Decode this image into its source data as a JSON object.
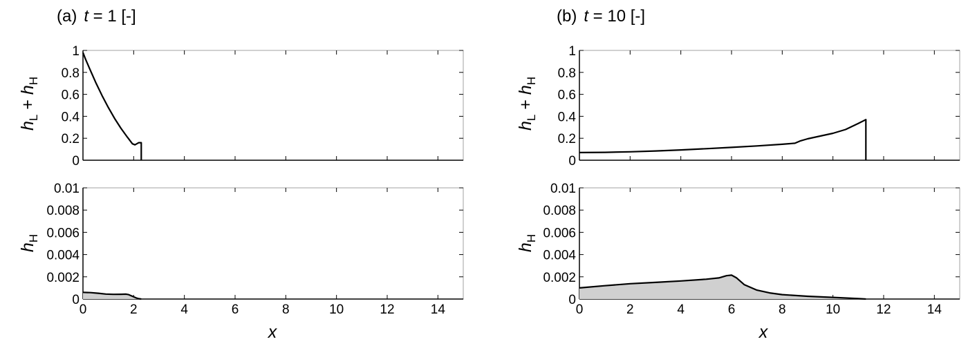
{
  "chart_data": [
    {
      "type": "line",
      "panel": "a",
      "title": "(a)  t = 1 [-]",
      "title_parts": {
        "prefix": "(a)",
        "var": "t",
        "rest": " = 1 [-]"
      },
      "ylabel": {
        "main1": "h",
        "sub1": "L",
        "plus": " + ",
        "main2": "h",
        "sub2": "H"
      },
      "xlabel": "",
      "xlim": [
        0,
        15
      ],
      "ylim": [
        0,
        1
      ],
      "yticks": [
        "0",
        "0.2",
        "0.4",
        "0.6",
        "0.8",
        "1"
      ],
      "x": [
        0,
        0.1,
        0.25,
        0.5,
        0.75,
        1.0,
        1.25,
        1.5,
        1.75,
        1.95,
        2.05,
        2.2,
        2.3,
        2.3
      ],
      "y": [
        0.98,
        0.92,
        0.84,
        0.71,
        0.59,
        0.48,
        0.38,
        0.29,
        0.21,
        0.15,
        0.14,
        0.16,
        0.16,
        0
      ]
    },
    {
      "type": "area",
      "panel": "a",
      "ylabel": {
        "main": "h",
        "sub": "H"
      },
      "xlabel": "x",
      "xlim": [
        0,
        15
      ],
      "ylim": [
        0,
        0.01
      ],
      "xticks": [
        "0",
        "2",
        "4",
        "6",
        "8",
        "10",
        "12",
        "14"
      ],
      "yticks": [
        "0",
        "0.002",
        "0.004",
        "0.006",
        "0.008",
        "0.01"
      ],
      "x": [
        0,
        0.3,
        0.6,
        0.9,
        1.2,
        1.5,
        1.7,
        1.8,
        1.95,
        2.1,
        2.2,
        2.3
      ],
      "y": [
        0.0006,
        0.00058,
        0.00052,
        0.00045,
        0.00042,
        0.00043,
        0.00044,
        0.0004,
        0.00025,
        0.0001,
        3e-05,
        0
      ]
    },
    {
      "type": "line",
      "panel": "b",
      "title": "(b)  t = 10 [-]",
      "title_parts": {
        "prefix": "(b)",
        "var": "t",
        "rest": " = 10 [-]"
      },
      "ylabel": {
        "main1": "h",
        "sub1": "L",
        "plus": " + ",
        "main2": "h",
        "sub2": "H"
      },
      "xlabel": "",
      "xlim": [
        0,
        15
      ],
      "ylim": [
        0,
        1
      ],
      "yticks": [
        "0",
        "0.2",
        "0.4",
        "0.6",
        "0.8",
        "1"
      ],
      "x": [
        0,
        1,
        2,
        3,
        4,
        5,
        6,
        7,
        8,
        8.5,
        8.7,
        9,
        9.5,
        10,
        10.5,
        11,
        11.3,
        11.3
      ],
      "y": [
        0.07,
        0.072,
        0.077,
        0.084,
        0.094,
        0.105,
        0.117,
        0.13,
        0.145,
        0.155,
        0.175,
        0.195,
        0.22,
        0.245,
        0.28,
        0.335,
        0.37,
        0
      ]
    },
    {
      "type": "area",
      "panel": "b",
      "ylabel": {
        "main": "h",
        "sub": "H"
      },
      "xlabel": "x",
      "xlim": [
        0,
        15
      ],
      "ylim": [
        0,
        0.01
      ],
      "xticks": [
        "0",
        "2",
        "4",
        "6",
        "8",
        "10",
        "12",
        "14"
      ],
      "yticks": [
        "0",
        "0.002",
        "0.004",
        "0.006",
        "0.008",
        "0.01"
      ],
      "x": [
        0,
        1,
        2,
        3,
        4,
        5,
        5.5,
        5.8,
        6.0,
        6.2,
        6.5,
        7,
        7.5,
        8,
        9,
        10,
        11,
        11.3
      ],
      "y": [
        0.001,
        0.0012,
        0.00138,
        0.0015,
        0.00163,
        0.00178,
        0.0019,
        0.0021,
        0.00215,
        0.0019,
        0.0013,
        0.0008,
        0.00055,
        0.0004,
        0.00025,
        0.00015,
        4e-05,
        0
      ]
    }
  ],
  "style": {
    "line_color": "#000000",
    "fill_color": "#d0d0d0",
    "frame_color": "#a0a0a0"
  }
}
